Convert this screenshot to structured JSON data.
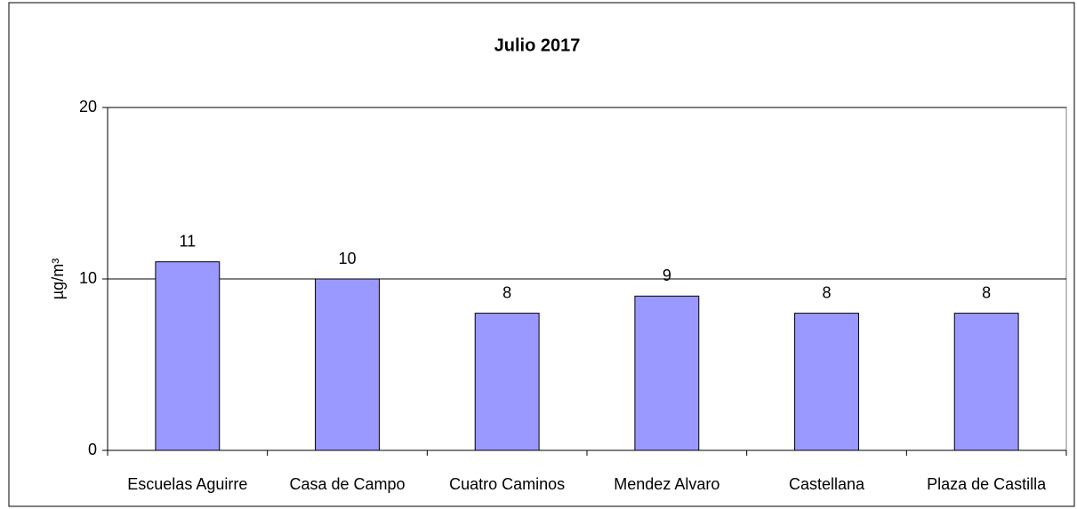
{
  "chart_data": {
    "type": "bar",
    "title": "Julio 2017",
    "ylabel": "µg/m³",
    "categories": [
      "Escuelas Aguirre",
      "Casa de Campo",
      "Cuatro Caminos",
      "Mendez Alvaro",
      "Castellana",
      "Plaza de Castilla"
    ],
    "values": [
      11,
      10,
      8,
      9,
      8,
      8
    ],
    "color": "#9999ff",
    "ylim": [
      0,
      20
    ],
    "yticks": [
      0,
      10,
      20
    ],
    "grid": true
  }
}
